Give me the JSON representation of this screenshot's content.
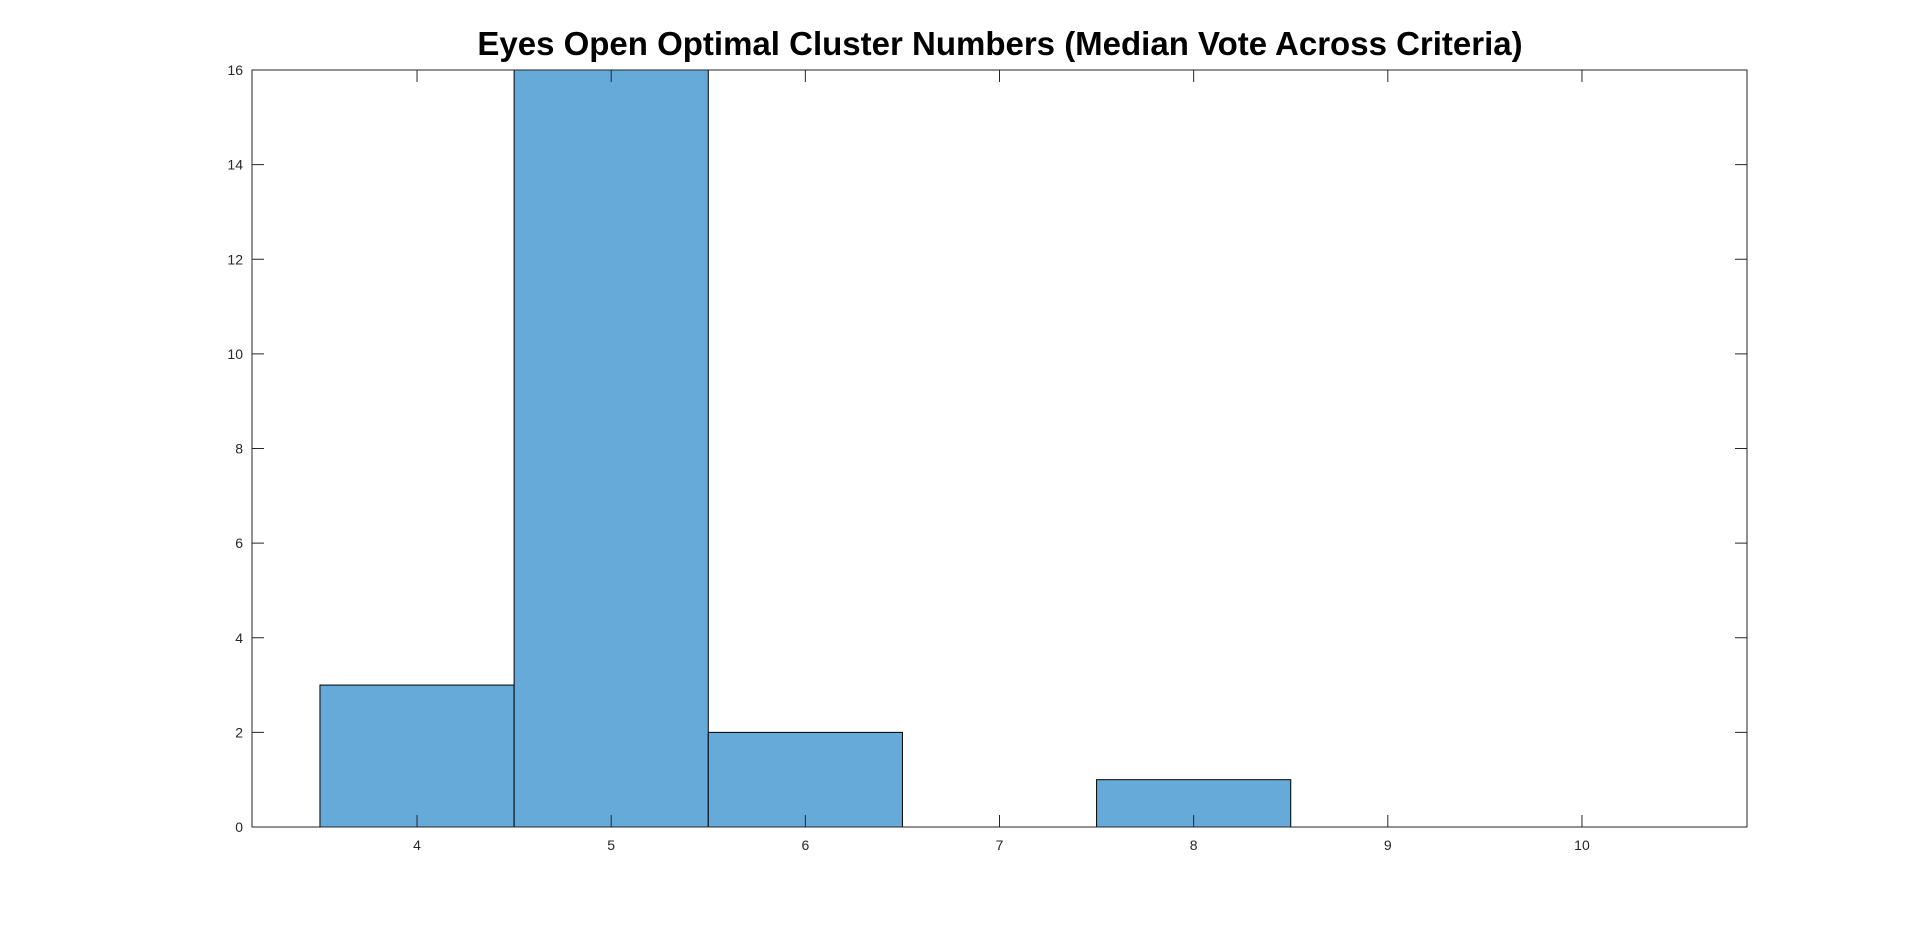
{
  "chart_data": {
    "type": "bar",
    "title": "Eyes Open Optimal Cluster Numbers (Median Vote Across Criteria)",
    "xlabel": "",
    "ylabel": "",
    "x_ticks": [
      4,
      5,
      6,
      7,
      8,
      9,
      10
    ],
    "y_ticks": [
      0,
      2,
      4,
      6,
      8,
      10,
      12,
      14,
      16
    ],
    "xlim": [
      3.15,
      10.85
    ],
    "ylim": [
      0,
      16
    ],
    "categories": [
      4,
      5,
      6,
      7,
      8
    ],
    "values": [
      3,
      16,
      2,
      0,
      1
    ],
    "bar_width": 1,
    "bar_color": "#66aad9",
    "edge_color": "#000000",
    "grid": false,
    "legend": "none"
  }
}
